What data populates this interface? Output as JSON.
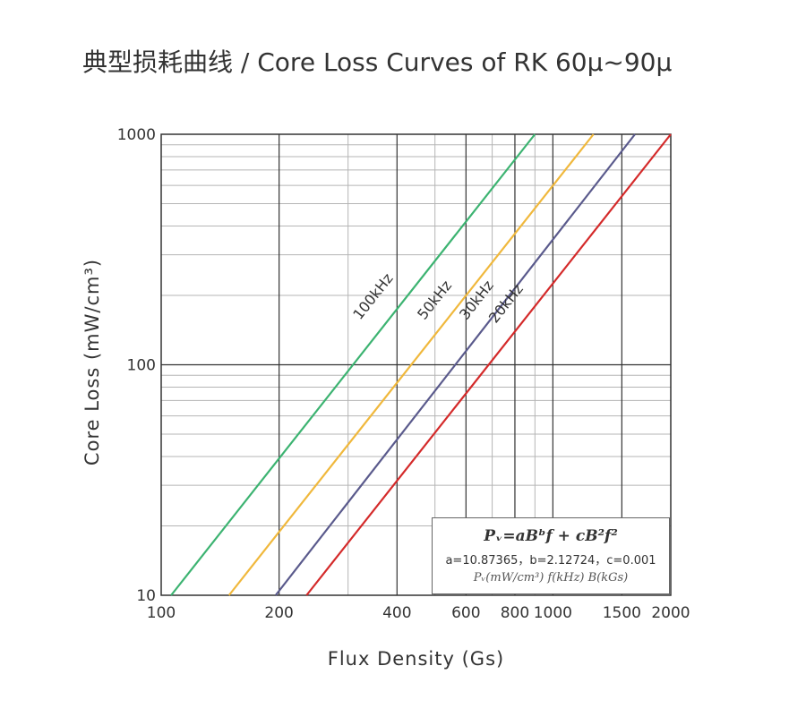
{
  "title": "典型损耗曲线 / Core Loss Curves of RK 60μ~90μ",
  "formula": {
    "line1": "Pᵥ=aBᵇf + cB²f²",
    "line2": "a=10.87365，b=2.12724，c=0.001",
    "line3": "Pᵥ(mW/cm³) f(kHz) B(kGs)"
  },
  "chart_data": {
    "type": "line",
    "xlabel": "Flux Density (Gs)",
    "ylabel": "Core Loss (mW/cm³)",
    "xscale": "log",
    "yscale": "log",
    "xlim": [
      100,
      2000
    ],
    "ylim": [
      10,
      1000
    ],
    "x_ticks": [
      100,
      200,
      400,
      600,
      800,
      1000,
      1500,
      2000
    ],
    "x_tick_labels": [
      "100",
      "200",
      "400",
      "600",
      "800",
      "1000",
      "1500",
      "2000"
    ],
    "y_ticks": [
      10,
      100,
      1000
    ],
    "y_tick_labels": [
      "10",
      "100",
      "1000"
    ],
    "grid": true,
    "series": [
      {
        "name": "100kHz",
        "color": "#3cb371",
        "x": [
          106,
          900
        ],
        "y": [
          10,
          1000
        ]
      },
      {
        "name": "50kHz",
        "color": "#f0b83c",
        "x": [
          149,
          1270
        ],
        "y": [
          10,
          1000
        ]
      },
      {
        "name": "30kHz",
        "color": "#5a5a8c",
        "x": [
          196,
          1620
        ],
        "y": [
          10,
          1000
        ]
      },
      {
        "name": "20kHz",
        "color": "#d42a2a",
        "x": [
          235,
          2000
        ],
        "y": [
          10,
          1000
        ]
      }
    ],
    "annotations": [
      {
        "series": "100kHz",
        "text": "100kHz",
        "x": 322,
        "y": 150
      },
      {
        "series": "50kHz",
        "text": "50kHz",
        "x": 470,
        "y": 150
      },
      {
        "series": "30kHz",
        "text": "30kHz",
        "x": 602,
        "y": 150
      },
      {
        "series": "20kHz",
        "text": "20kHz",
        "x": 715,
        "y": 145
      }
    ]
  }
}
